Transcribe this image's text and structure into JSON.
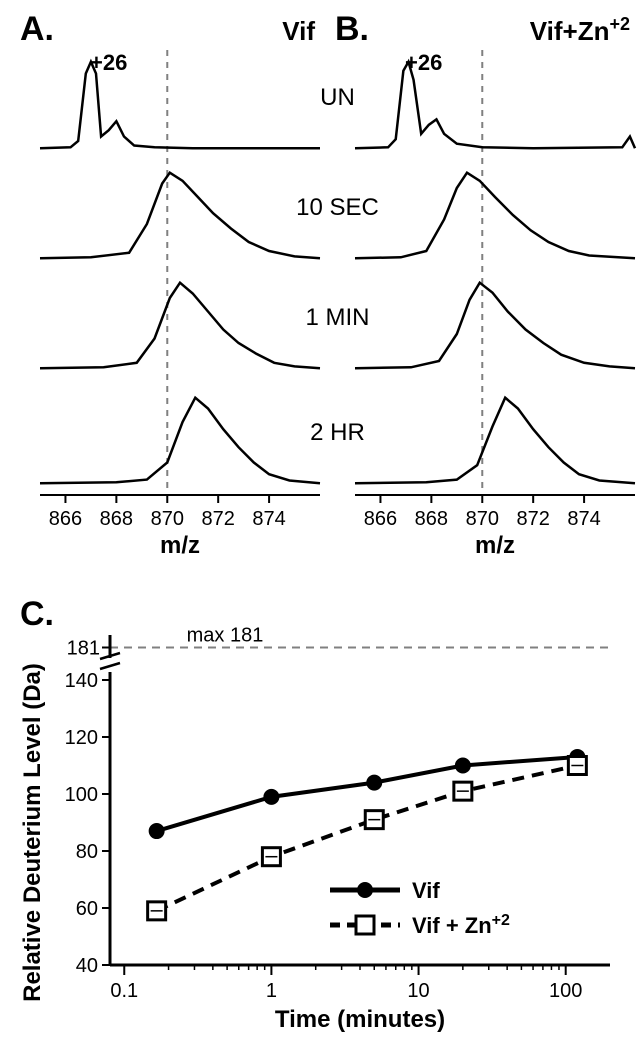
{
  "panels": {
    "A": {
      "label": "A.",
      "title": "Vif",
      "charge": "+26"
    },
    "B": {
      "label": "B.",
      "title": "Vif+Zn",
      "title_sup": "+2",
      "charge": "+26"
    },
    "C": {
      "label": "C."
    }
  },
  "spectra": {
    "rows": [
      "UN",
      "10 SEC",
      "1 MIN",
      "2 HR"
    ],
    "xlim": [
      865,
      876
    ],
    "xticks": [
      866,
      868,
      870,
      872,
      874
    ],
    "xlabel": "m/z",
    "guide_x": 870,
    "curves": {
      "A": {
        "UN": [
          [
            865,
            0.02
          ],
          [
            866.2,
            0.03
          ],
          [
            866.5,
            0.1
          ],
          [
            866.8,
            0.85
          ],
          [
            867.0,
            0.98
          ],
          [
            867.2,
            0.85
          ],
          [
            867.4,
            0.15
          ],
          [
            867.7,
            0.22
          ],
          [
            868.0,
            0.32
          ],
          [
            868.3,
            0.15
          ],
          [
            868.7,
            0.05
          ],
          [
            869.5,
            0.03
          ],
          [
            871,
            0.02
          ],
          [
            874,
            0.02
          ],
          [
            876,
            0.02
          ]
        ],
        "10 SEC": [
          [
            865,
            0.02
          ],
          [
            867,
            0.03
          ],
          [
            868.5,
            0.08
          ],
          [
            869.2,
            0.4
          ],
          [
            869.8,
            0.85
          ],
          [
            870.1,
            0.97
          ],
          [
            870.6,
            0.88
          ],
          [
            871.2,
            0.7
          ],
          [
            871.8,
            0.52
          ],
          [
            872.5,
            0.35
          ],
          [
            873.2,
            0.2
          ],
          [
            874,
            0.1
          ],
          [
            875,
            0.04
          ],
          [
            876,
            0.02
          ]
        ],
        "1 MIN": [
          [
            865,
            0.02
          ],
          [
            867.5,
            0.03
          ],
          [
            868.8,
            0.08
          ],
          [
            869.5,
            0.35
          ],
          [
            870.1,
            0.8
          ],
          [
            870.5,
            0.97
          ],
          [
            871.0,
            0.85
          ],
          [
            871.6,
            0.65
          ],
          [
            872.2,
            0.45
          ],
          [
            872.8,
            0.3
          ],
          [
            873.5,
            0.18
          ],
          [
            874.2,
            0.08
          ],
          [
            875,
            0.04
          ],
          [
            876,
            0.02
          ]
        ],
        "2 HR": [
          [
            865,
            0.02
          ],
          [
            868,
            0.03
          ],
          [
            869.2,
            0.06
          ],
          [
            870,
            0.25
          ],
          [
            870.6,
            0.7
          ],
          [
            871.1,
            0.97
          ],
          [
            871.6,
            0.85
          ],
          [
            872.2,
            0.62
          ],
          [
            872.8,
            0.42
          ],
          [
            873.4,
            0.25
          ],
          [
            874,
            0.12
          ],
          [
            874.8,
            0.05
          ],
          [
            876,
            0.02
          ]
        ]
      },
      "B": {
        "UN": [
          [
            865,
            0.02
          ],
          [
            866.3,
            0.03
          ],
          [
            866.6,
            0.12
          ],
          [
            866.9,
            0.88
          ],
          [
            867.1,
            0.98
          ],
          [
            867.3,
            0.78
          ],
          [
            867.6,
            0.18
          ],
          [
            867.9,
            0.28
          ],
          [
            868.2,
            0.34
          ],
          [
            868.5,
            0.18
          ],
          [
            869,
            0.07
          ],
          [
            870,
            0.03
          ],
          [
            872,
            0.02
          ],
          [
            875.5,
            0.03
          ],
          [
            875.8,
            0.15
          ],
          [
            876,
            0.02
          ]
        ],
        "10 SEC": [
          [
            865,
            0.02
          ],
          [
            866.8,
            0.03
          ],
          [
            867.8,
            0.1
          ],
          [
            868.5,
            0.45
          ],
          [
            869.0,
            0.8
          ],
          [
            869.4,
            0.97
          ],
          [
            869.9,
            0.88
          ],
          [
            870.5,
            0.7
          ],
          [
            871.2,
            0.5
          ],
          [
            871.9,
            0.33
          ],
          [
            872.6,
            0.2
          ],
          [
            873.4,
            0.1
          ],
          [
            874.2,
            0.05
          ],
          [
            876,
            0.02
          ]
        ],
        "1 MIN": [
          [
            865,
            0.02
          ],
          [
            867.2,
            0.03
          ],
          [
            868.3,
            0.1
          ],
          [
            869.0,
            0.4
          ],
          [
            869.5,
            0.78
          ],
          [
            869.9,
            0.97
          ],
          [
            870.4,
            0.86
          ],
          [
            871.0,
            0.65
          ],
          [
            871.7,
            0.45
          ],
          [
            872.4,
            0.3
          ],
          [
            873.1,
            0.17
          ],
          [
            874,
            0.08
          ],
          [
            875,
            0.04
          ],
          [
            876,
            0.02
          ]
        ],
        "2 HR": [
          [
            865,
            0.02
          ],
          [
            867.8,
            0.03
          ],
          [
            869,
            0.06
          ],
          [
            869.8,
            0.22
          ],
          [
            870.4,
            0.65
          ],
          [
            870.9,
            0.97
          ],
          [
            871.4,
            0.85
          ],
          [
            872.0,
            0.62
          ],
          [
            872.6,
            0.42
          ],
          [
            873.2,
            0.25
          ],
          [
            873.8,
            0.12
          ],
          [
            874.6,
            0.05
          ],
          [
            876,
            0.02
          ]
        ]
      }
    },
    "colors": {
      "trace": "#000000",
      "baseline": "#000000",
      "guide": "#808080"
    },
    "line_width": 2.5
  },
  "uptake_plot": {
    "xlabel": "Time (minutes)",
    "ylabel": "Relative Deuterium Level (Da)",
    "xscale": "log",
    "xlim": [
      0.08,
      200
    ],
    "xticks": [
      0.1,
      1,
      10,
      100
    ],
    "xtick_labels": [
      "0.1",
      "1",
      "10",
      "100"
    ],
    "ylim": [
      40,
      140
    ],
    "yticks": [
      40,
      60,
      80,
      100,
      120,
      140
    ],
    "ytick_labels": [
      "40",
      "60",
      "80",
      "100",
      "120",
      "140"
    ],
    "max_line": 181,
    "max_line_y_top": 181,
    "ytick_top": "181",
    "axis_break": true,
    "max_label": "max 181",
    "grid_color": "#808080",
    "series": [
      {
        "name": "Vif",
        "label": "Vif",
        "points": [
          [
            0.166,
            87
          ],
          [
            1,
            99
          ],
          [
            5,
            104
          ],
          [
            20,
            110
          ],
          [
            120,
            113
          ]
        ],
        "color": "#000000",
        "marker": "circle-filled",
        "line_style": "solid",
        "line_width": 4,
        "marker_size": 8
      },
      {
        "name": "VifZn",
        "label_main": "Vif + Zn",
        "label_sup": "+2",
        "points": [
          [
            0.166,
            59
          ],
          [
            1,
            78
          ],
          [
            5,
            91
          ],
          [
            20,
            101
          ],
          [
            120,
            110
          ]
        ],
        "color": "#000000",
        "marker": "square-open",
        "line_style": "dashed",
        "line_width": 4,
        "marker_size": 9
      }
    ],
    "background": "#ffffff",
    "axis_color": "#000000",
    "tick_fontsize": 20,
    "label_fontsize": 24
  }
}
